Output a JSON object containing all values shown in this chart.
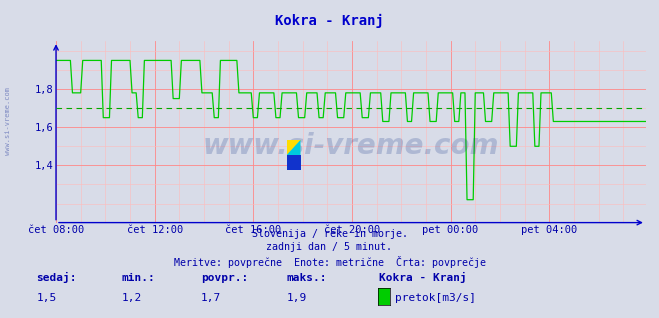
{
  "title": "Kokra - Kranj",
  "title_color": "#0000cc",
  "bg_color": "#d8dce8",
  "plot_bg_color": "#d8dce8",
  "line_color": "#00cc00",
  "avg_line_color": "#00aa00",
  "axis_color": "#0000cc",
  "grid_color_v": "#ff8888",
  "grid_color_h": "#ddaaaa",
  "text_color": "#0000aa",
  "xticklabels": [
    "čet 08:00",
    "čet 12:00",
    "čet 16:00",
    "čet 20:00",
    "pet 00:00",
    "pet 04:00"
  ],
  "yticklabels": [
    "1,4",
    "1,6",
    "1,8"
  ],
  "yticks": [
    1.4,
    1.6,
    1.8
  ],
  "ylim": [
    1.1,
    2.05
  ],
  "xlim_max": 287,
  "avg_value": 1.7,
  "subtitle1": "Slovenija / reke in morje.",
  "subtitle2": "zadnji dan / 5 minut.",
  "subtitle3": "Meritve: povprečne  Enote: metrične  Črta: povprečje",
  "legend_title": "Kokra - Kranj",
  "legend_label": "pretok[m3/s]",
  "stat_sedaj": "1,5",
  "stat_min": "1,2",
  "stat_povpr": "1,7",
  "stat_maks": "1,9",
  "watermark": "www.si-vreme.com",
  "sidebar_text": "www.si-vreme.com"
}
